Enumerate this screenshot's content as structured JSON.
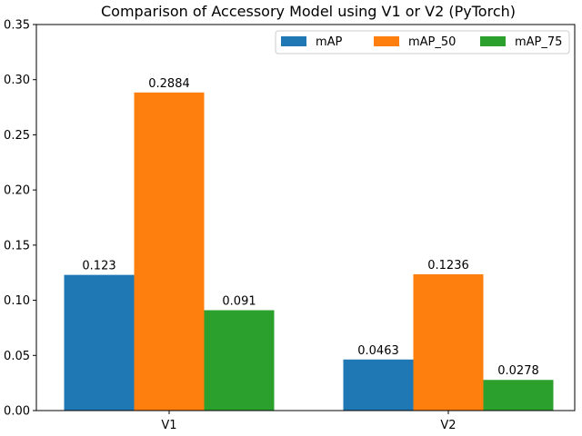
{
  "chart_data": {
    "type": "bar",
    "title": "Comparison of Accessory Model using V1 or V2 (PyTorch)",
    "xlabel": "",
    "ylabel": "",
    "categories": [
      "V1",
      "V2"
    ],
    "series": [
      {
        "name": "mAP",
        "color": "#1f77b4",
        "values": [
          0.123,
          0.0463
        ],
        "labels": [
          "0.123",
          "0.0463"
        ]
      },
      {
        "name": "mAP_50",
        "color": "#ff7f0e",
        "values": [
          0.2884,
          0.1236
        ],
        "labels": [
          "0.2884",
          "0.1236"
        ]
      },
      {
        "name": "mAP_75",
        "color": "#2ca02c",
        "values": [
          0.091,
          0.0278
        ],
        "labels": [
          "0.091",
          "0.0278"
        ]
      }
    ],
    "ylim": [
      0,
      0.35
    ],
    "yticks": [
      0.0,
      0.05,
      0.1,
      0.15,
      0.2,
      0.25,
      0.3,
      0.35
    ],
    "ytick_labels": [
      "0.00",
      "0.05",
      "0.10",
      "0.15",
      "0.20",
      "0.25",
      "0.30",
      "0.35"
    ],
    "grid": false,
    "legend_position": "top-right",
    "legend_columns": 3
  }
}
